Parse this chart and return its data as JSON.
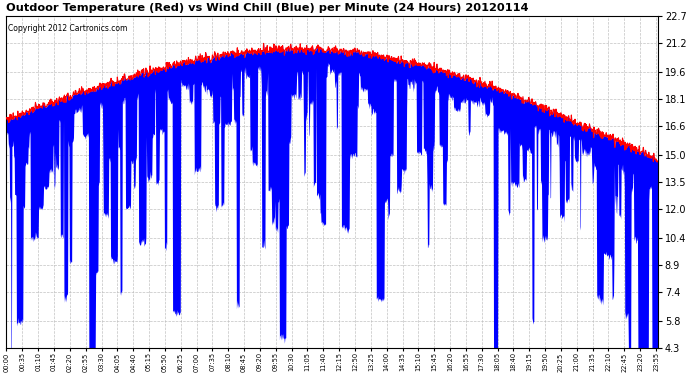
{
  "title": "Outdoor Temperature (Red) vs Wind Chill (Blue) per Minute (24 Hours) 20120114",
  "copyright": "Copyright 2012 Cartronics.com",
  "yticks": [
    4.3,
    5.8,
    7.4,
    8.9,
    10.4,
    12.0,
    13.5,
    15.0,
    16.6,
    18.1,
    19.6,
    21.2,
    22.7
  ],
  "ymin": 4.3,
  "ymax": 22.7,
  "bg_color": "#ffffff",
  "grid_color": "#bbbbbb",
  "temp_color": "#ff0000",
  "windchill_color": "#0000ff",
  "n_minutes": 1440,
  "temp_seed": 77,
  "wind_seed": 42
}
